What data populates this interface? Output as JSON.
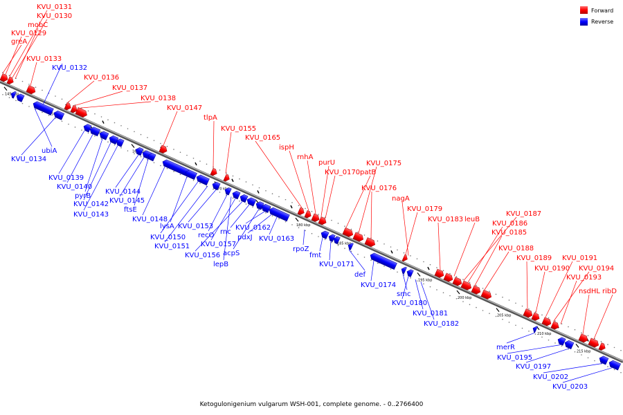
{
  "caption": "Ketogulonigenium vulgarum WSH-001, complete genome. - 0..2766400",
  "legend": [
    {
      "label": "Forward",
      "color": "#ff0000"
    },
    {
      "label": "Reverse",
      "color": "#0000ff"
    }
  ],
  "ticks": [
    "145 kbp",
    "150 kbp",
    "155 kbp",
    "160 kbp",
    "165 kbp",
    "170 kbp",
    "175 kbp",
    "180 kbp",
    "185 kbp",
    "190 kbp",
    "195 kbp",
    "200 kbp",
    "205 kbp",
    "210 kbp",
    "215 kbp"
  ],
  "forward_labels": [
    "KVU_0131",
    "KVU_0130",
    "mobC",
    "KVU_0129",
    "greA",
    "KVU_0133",
    "KVU_0136",
    "KVU_0137",
    "KVU_0138",
    "KVU_0147",
    "tlpA",
    "KVU_0155",
    "KVU_0165",
    "ispH",
    "rnhA",
    "purU",
    "KVU_0170",
    "patB",
    "KVU_0175",
    "KVU_0176",
    "nagA",
    "KVU_0179",
    "KVU_0183",
    "leuB",
    "KVU_0187",
    "KVU_0186",
    "KVU_0185",
    "KVU_0188",
    "KVU_0189",
    "KVU_0190",
    "KVU_0191",
    "KVU_0194",
    "KVU_0193",
    "nsdHL",
    "ribD"
  ],
  "reverse_labels": [
    "KVU_0132",
    "ubiA",
    "KVU_0134",
    "KVU_0139",
    "KVU_0140",
    "pyrB",
    "KVU_0142",
    "KVU_0143",
    "KVU_0144",
    "KVU_0145",
    "ftsE",
    "KVU_0148",
    "lysA",
    "KVU_0150",
    "KVU_0151",
    "KVU_0153",
    "recO",
    "KVU_0157",
    "KVU_0156",
    "rnc",
    "acpS",
    "lepB",
    "KVU_0162",
    "pdxJ",
    "KVU_0163",
    "rpoZ",
    "fmt",
    "KVU_0171",
    "def",
    "KVU_0174",
    "smc",
    "KVU_0180",
    "KVU_0181",
    "KVU_0182",
    "merR",
    "KVU_0195",
    "KVU_0197",
    "KVU_0202",
    "KVU_0203"
  ]
}
